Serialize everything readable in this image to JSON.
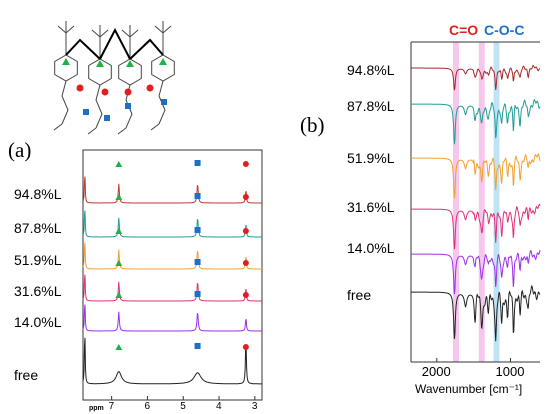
{
  "figure": {
    "panel_a_label": "(a)",
    "panel_b_label": "(b)"
  },
  "chart_data": [
    {
      "type": "line",
      "panel": "(a)",
      "xlabel": "ppm",
      "x_ticks": [
        "7",
        "6",
        "5",
        "4",
        "3"
      ],
      "xlim": [
        7.8,
        2.8
      ],
      "x_reversed": true,
      "grid": false,
      "legend": "none",
      "series": [
        {
          "name": "94.8%L",
          "color": "#c0392b"
        },
        {
          "name": "87.8%L",
          "color": "#1e9e96"
        },
        {
          "name": "51.9%L",
          "color": "#f0a030"
        },
        {
          "name": "31.6%L",
          "color": "#e0307a"
        },
        {
          "name": "14.0%L",
          "color": "#9b30e8"
        },
        {
          "name": "free",
          "color": "#222222"
        }
      ],
      "peaks_ppm": [
        {
          "position": 7.75,
          "marker": "none"
        },
        {
          "position": 6.8,
          "marker": "triangle",
          "marker_color": "#22b04a"
        },
        {
          "position": 4.6,
          "marker": "square",
          "marker_color": "#1f6fc5"
        },
        {
          "position": 3.25,
          "marker": "circle",
          "marker_color": "#e02020"
        }
      ]
    },
    {
      "type": "line",
      "panel": "(b)",
      "xlabel": "Wavenumber [cm⁻¹]",
      "x_ticks": [
        "2000",
        "1000"
      ],
      "xlim": [
        2350,
        600
      ],
      "x_reversed": true,
      "grid": false,
      "legend": "none",
      "series": [
        {
          "name": "94.8%L",
          "color": "#a52a2a"
        },
        {
          "name": "87.8%L",
          "color": "#1e9e96"
        },
        {
          "name": "51.9%L",
          "color": "#f0a030"
        },
        {
          "name": "31.6%L",
          "color": "#e0307a"
        },
        {
          "name": "14.0%L",
          "color": "#9b30e8"
        },
        {
          "name": "free",
          "color": "#222222"
        }
      ],
      "highlight_bands": [
        {
          "label": "C=O",
          "range": [
            1700,
            1780
          ],
          "color": "#f7c6ec",
          "label_color": "#e02020"
        },
        {
          "label": "C-O-C",
          "range": [
            1150,
            1230
          ],
          "color": "#bfe3f5",
          "label_color": "#1f6fc5"
        }
      ],
      "extra_band": {
        "range": [
          1350,
          1430
        ],
        "color": "#f7c6ec"
      }
    }
  ]
}
